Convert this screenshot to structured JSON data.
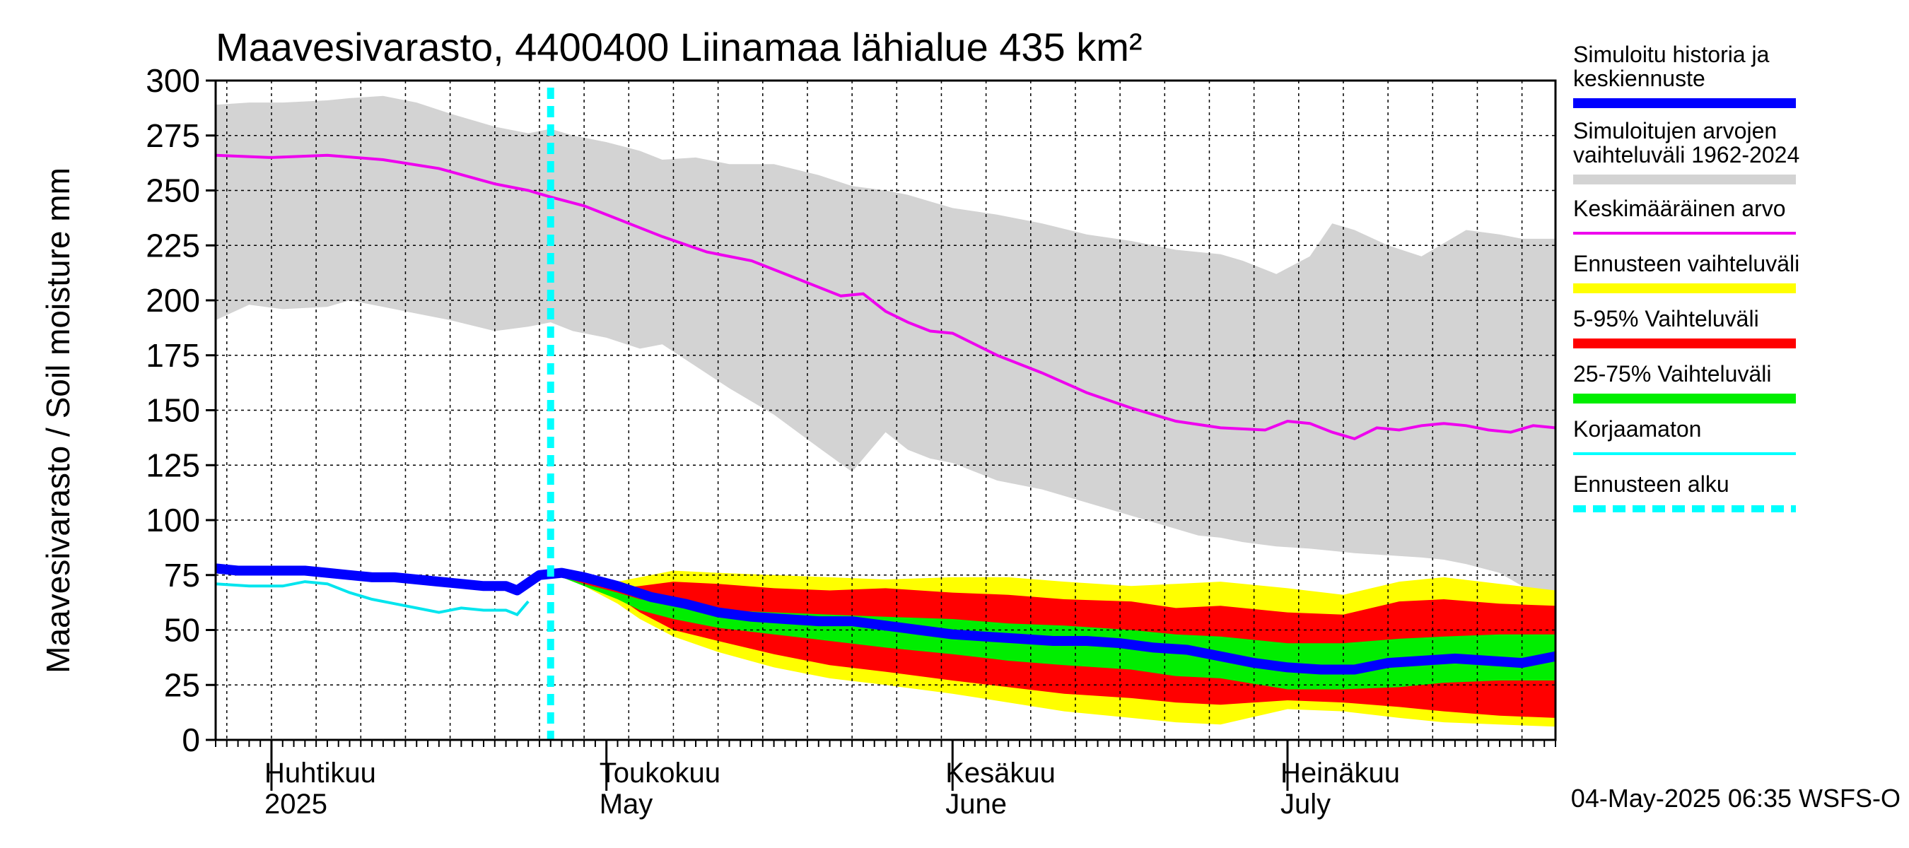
{
  "chart_data": {
    "type": "area",
    "title": "Maavesivarasto, 4400400 Liinamaa lähialue 435 km²",
    "ylabel": "Maavesivarasto / Soil moisture   mm",
    "ylim": [
      0,
      300
    ],
    "yticks": [
      0,
      25,
      50,
      75,
      100,
      125,
      150,
      175,
      200,
      225,
      250,
      275,
      300
    ],
    "x_range_days": [
      0,
      120
    ],
    "x_origin_date": "2025-03-27",
    "month_labels": [
      {
        "fi": "Huhtikuu",
        "en": "2025",
        "day": 5
      },
      {
        "fi": "Toukokuu",
        "en": "May",
        "day": 35
      },
      {
        "fi": "Kesäkuu",
        "en": "June",
        "day": 66
      },
      {
        "fi": "Heinäkuu",
        "en": "July",
        "day": 96
      }
    ],
    "month_boundaries_days": [
      5,
      35,
      66,
      96
    ],
    "forecast_start_day": 30,
    "legend": [
      {
        "label": "Simuloitu historia ja keskiennuste",
        "color": "#0000ff",
        "style": "thick"
      },
      {
        "label": "Simuloitujen arvojen vaihteluväli 1962-2024",
        "color": "#d3d3d3",
        "style": "thick"
      },
      {
        "label": "Keskimääräinen arvo",
        "color": "#ee00ee",
        "style": "line"
      },
      {
        "label": "Ennusteen vaihteluväli",
        "color": "#ffff00",
        "style": "thick"
      },
      {
        "label": "5-95% Vaihteluväli",
        "color": "#ff0000",
        "style": "thick"
      },
      {
        "label": "25-75% Vaihteluväli",
        "color": "#00ee00",
        "style": "thick"
      },
      {
        "label": "Korjaamaton",
        "color": "#00ffff",
        "style": "line"
      },
      {
        "label": "Ennusteen alku",
        "color": "#00ffff",
        "style": "dashed"
      }
    ],
    "footer": "04-May-2025 06:35 WSFS-O",
    "series": {
      "hist_range": {
        "name": "Simuloitujen arvojen vaihteluväli 1962-2024",
        "x": [
          0,
          3,
          6,
          10,
          12,
          15,
          18,
          21,
          25,
          28,
          30,
          32,
          35,
          38,
          40,
          43,
          46,
          50,
          54,
          57,
          60,
          62,
          64,
          66,
          70,
          74,
          78,
          82,
          86,
          88,
          90,
          92,
          95,
          98,
          100,
          102,
          105,
          108,
          110,
          112,
          115,
          117,
          120
        ],
        "high": [
          289,
          290,
          290,
          291,
          292,
          293,
          290,
          285,
          279,
          276,
          278,
          275,
          272,
          268,
          264,
          265,
          262,
          262,
          257,
          252,
          250,
          248,
          245,
          242,
          239,
          235,
          230,
          227,
          223,
          222,
          221,
          218,
          212,
          220,
          235,
          232,
          225,
          220,
          226,
          232,
          230,
          228,
          228
        ],
        "low": [
          191,
          198,
          196,
          197,
          200,
          197,
          194,
          191,
          186,
          188,
          190,
          186,
          183,
          178,
          180,
          170,
          160,
          148,
          133,
          122,
          140,
          132,
          128,
          126,
          118,
          114,
          108,
          102,
          96,
          93,
          92,
          90,
          88,
          87,
          86,
          85,
          84,
          83,
          82,
          80,
          76,
          70,
          62
        ]
      },
      "yellow_range": {
        "name": "Ennusteen vaihteluväli",
        "x": [
          30,
          33,
          36,
          38,
          41,
          45,
          50,
          55,
          60,
          66,
          71,
          76,
          82,
          86,
          90,
          96,
          101,
          106,
          110,
          115,
          120
        ],
        "high": [
          76,
          74,
          72,
          74,
          77,
          76,
          75,
          74,
          73,
          74,
          74,
          72,
          70,
          71,
          72,
          69,
          66,
          72,
          74,
          71,
          68
        ],
        "low": [
          76,
          70,
          62,
          55,
          47,
          40,
          33,
          28,
          25,
          21,
          17,
          13,
          10,
          8,
          7,
          14,
          13,
          10,
          8,
          7,
          6
        ]
      },
      "red_range": {
        "name": "5-95% Vaihteluväli",
        "x": [
          30,
          33,
          36,
          38,
          41,
          45,
          50,
          55,
          60,
          66,
          71,
          76,
          82,
          86,
          90,
          96,
          101,
          106,
          110,
          115,
          120
        ],
        "high": [
          76,
          73,
          69,
          70,
          72,
          71,
          69,
          68,
          69,
          67,
          66,
          64,
          63,
          60,
          61,
          58,
          57,
          63,
          64,
          62,
          61
        ],
        "low": [
          76,
          71,
          65,
          58,
          50,
          45,
          39,
          34,
          31,
          27,
          24,
          21,
          19,
          17,
          16,
          18,
          17,
          15,
          13,
          11,
          10
        ]
      },
      "green_range": {
        "name": "25-75% Vaihteluväli",
        "x": [
          30,
          33,
          36,
          38,
          41,
          45,
          50,
          55,
          60,
          66,
          71,
          76,
          82,
          86,
          90,
          96,
          101,
          106,
          110,
          115,
          120
        ],
        "high": [
          76,
          71,
          67,
          64,
          62,
          59,
          58,
          57,
          56,
          55,
          53,
          52,
          50,
          48,
          47,
          44,
          44,
          46,
          47,
          48,
          48
        ],
        "low": [
          76,
          70,
          64,
          59,
          55,
          51,
          48,
          45,
          42,
          39,
          36,
          34,
          32,
          29,
          28,
          23,
          23,
          24,
          26,
          27,
          27
        ]
      },
      "mean": {
        "name": "Keskimääräinen arvo",
        "x": [
          0,
          5,
          10,
          15,
          20,
          25,
          28,
          30,
          33,
          36,
          40,
          44,
          48,
          52,
          56,
          58,
          60,
          62,
          64,
          66,
          70,
          74,
          78,
          82,
          86,
          90,
          94,
          96,
          98,
          100,
          102,
          104,
          106,
          108,
          110,
          112,
          114,
          116,
          118,
          120
        ],
        "values": [
          266,
          265,
          266,
          264,
          260,
          253,
          250,
          247,
          243,
          237,
          229,
          222,
          218,
          210,
          202,
          203,
          195,
          190,
          186,
          185,
          175,
          167,
          158,
          151,
          145,
          142,
          141,
          145,
          144,
          140,
          137,
          142,
          141,
          143,
          144,
          143,
          141,
          140,
          143,
          142
        ]
      },
      "simulated": {
        "name": "Simuloitu historia ja keskiennuste",
        "x": [
          0,
          2,
          4,
          6,
          8,
          10,
          12,
          14,
          16,
          18,
          20,
          22,
          24,
          26,
          27,
          29,
          31,
          33,
          36,
          39,
          42,
          45,
          48,
          51,
          54,
          57,
          60,
          63,
          66,
          69,
          72,
          75,
          78,
          81,
          84,
          87,
          90,
          93,
          96,
          99,
          102,
          105,
          108,
          111,
          114,
          117,
          120
        ],
        "values": [
          78,
          77,
          77,
          77,
          77,
          76,
          75,
          74,
          74,
          73,
          72,
          71,
          70,
          70,
          68,
          75,
          76,
          74,
          70,
          65,
          62,
          58,
          56,
          55,
          54,
          54,
          52,
          50,
          48,
          47,
          46,
          45,
          45,
          44,
          42,
          41,
          38,
          35,
          33,
          32,
          32,
          35,
          36,
          37,
          36,
          35,
          38
        ]
      },
      "uncorrected": {
        "name": "Korjaamaton",
        "x": [
          0,
          3,
          6,
          8,
          10,
          12,
          14,
          16,
          18,
          20,
          22,
          24,
          26,
          27,
          28
        ],
        "values": [
          71,
          70,
          70,
          72,
          71,
          67,
          64,
          62,
          60,
          58,
          60,
          59,
          59,
          57,
          63
        ]
      }
    }
  }
}
